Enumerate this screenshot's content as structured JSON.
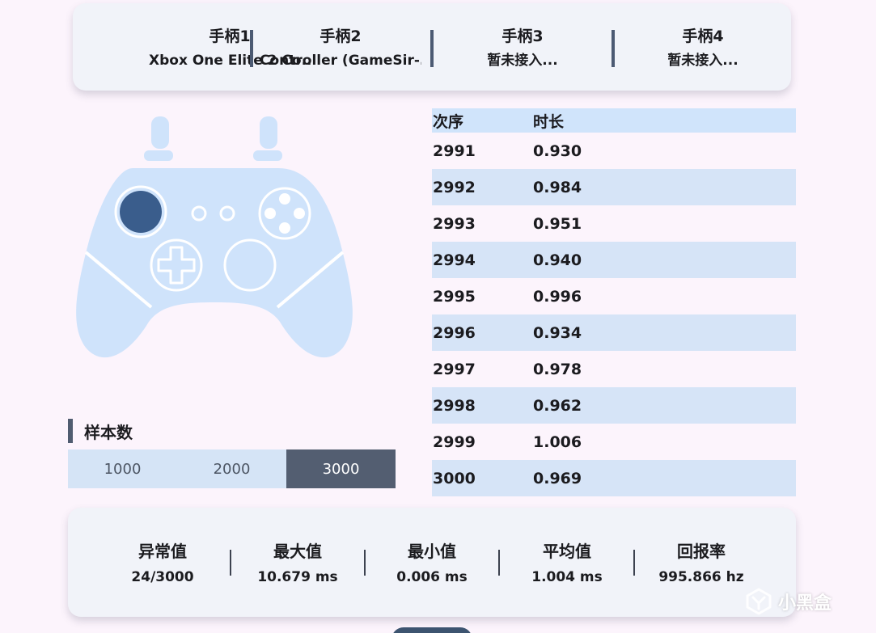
{
  "controllers": [
    {
      "title": "手柄1",
      "subtitle": "Xbox One Elite 2 Co..."
    },
    {
      "title": "手柄2",
      "subtitle": "Controller (GameSir-..."
    },
    {
      "title": "手柄3",
      "subtitle": "暂未接入..."
    },
    {
      "title": "手柄4",
      "subtitle": "暂未接入..."
    }
  ],
  "samples": {
    "label": "样本数",
    "options": [
      "1000",
      "2000",
      "3000"
    ],
    "selected": "3000"
  },
  "table": {
    "headers": [
      "次序",
      "时长"
    ],
    "rows": [
      [
        "2991",
        "0.930"
      ],
      [
        "2992",
        "0.984"
      ],
      [
        "2993",
        "0.951"
      ],
      [
        "2994",
        "0.940"
      ],
      [
        "2995",
        "0.996"
      ],
      [
        "2996",
        "0.934"
      ],
      [
        "2997",
        "0.978"
      ],
      [
        "2998",
        "0.962"
      ],
      [
        "2999",
        "1.006"
      ],
      [
        "3000",
        "0.969"
      ]
    ]
  },
  "stats": [
    {
      "label": "异常值",
      "value": "24/3000"
    },
    {
      "label": "最大值",
      "value": "10.679 ms"
    },
    {
      "label": "最小值",
      "value": "0.006 ms"
    },
    {
      "label": "平均值",
      "value": "1.004 ms"
    },
    {
      "label": "回报率",
      "value": "995.866 hz"
    }
  ],
  "watermark": {
    "text": "小黑盒",
    "icon": "xiaoheihe-logo"
  },
  "colors": {
    "pad_body": "#cfe3fb",
    "left_stick_active": "#3a5d8c",
    "selected_option": "#535e71"
  }
}
